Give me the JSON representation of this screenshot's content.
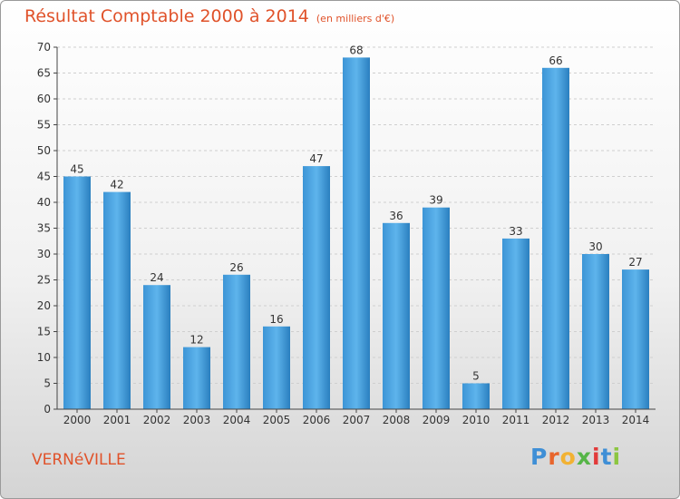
{
  "header": {
    "title": "Résultat Comptable 2000 à 2014",
    "unit": "(en milliers d'€)"
  },
  "footer": {
    "commune": "VERNéVILLE",
    "logo": "Proxiti"
  },
  "colors": {
    "title": "#e0522a",
    "bar_light": "#5eb4ec",
    "bar_dark": "#2a7fbf",
    "axis": "#444444"
  },
  "chart_data": {
    "type": "bar",
    "title": "Résultat Comptable 2000 à 2014",
    "subtitle": "(en milliers d'€)",
    "categories": [
      "2000",
      "2001",
      "2002",
      "2003",
      "2004",
      "2005",
      "2006",
      "2007",
      "2008",
      "2009",
      "2010",
      "2011",
      "2012",
      "2013",
      "2014"
    ],
    "values": [
      45,
      42,
      24,
      12,
      26,
      16,
      47,
      68,
      36,
      39,
      5,
      33,
      66,
      30,
      27
    ],
    "ylim": [
      0,
      70
    ],
    "yticks": [
      0,
      5,
      10,
      15,
      20,
      25,
      30,
      35,
      40,
      45,
      50,
      55,
      60,
      65,
      70
    ],
    "grid": true,
    "xlabel": "",
    "ylabel": ""
  }
}
